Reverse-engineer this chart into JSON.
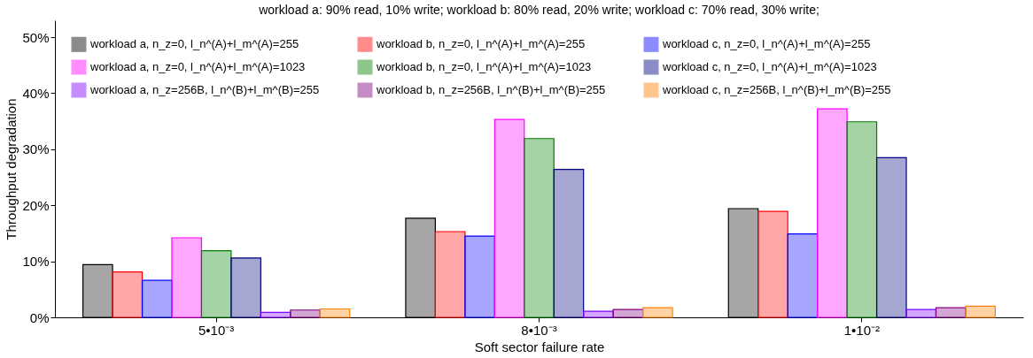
{
  "chart_data": {
    "type": "bar",
    "annotations": [
      "workload a: 90% read, 10% write;      workload b: 80% read, 20% write;      workload c: 70% read, 30% write;"
    ],
    "xlabel": "Soft sector failure rate",
    "ylabel": "Throughput degradation",
    "categories": [
      "5•10⁻³",
      "8•10⁻³",
      "1•10⁻²"
    ],
    "series": [
      {
        "name": "workload a, n_z=0, l_n^(A)+l_m^(A)=255",
        "color": "#000000",
        "values": [
          9.4,
          17.7,
          19.4
        ]
      },
      {
        "name": "workload b, n_z=0, l_n^(A)+l_m^(A)=255",
        "color": "#ff0000",
        "values": [
          8.1,
          15.3,
          18.9
        ]
      },
      {
        "name": "workload c, n_z=0, l_n^(A)+l_m^(A)=255",
        "color": "#0000ff",
        "values": [
          6.6,
          14.5,
          14.9
        ]
      },
      {
        "name": "workload a, n_z=0, l_n^(A)+l_m^(A)=1023",
        "color": "#ff00ff",
        "values": [
          14.2,
          35.3,
          37.2
        ]
      },
      {
        "name": "workload b, n_z=0, l_n^(A)+l_m^(A)=1023",
        "color": "#008000",
        "values": [
          11.9,
          31.9,
          34.9
        ]
      },
      {
        "name": "workload c, n_z=0, l_n^(A)+l_m^(A)=1023",
        "color": "#000080",
        "values": [
          10.6,
          26.4,
          28.5
        ]
      },
      {
        "name": "workload a, n_z=256B, l_n^(B)+l_m^(B)=255",
        "color": "#8000ff",
        "values": [
          0.9,
          1.1,
          1.4
        ]
      },
      {
        "name": "workload b, n_z=256B, l_n^(B)+l_m^(B)=255",
        "color": "#800080",
        "values": [
          1.3,
          1.4,
          1.7
        ]
      },
      {
        "name": "workload c, n_z=256B, l_n^(B)+l_m^(B)=255",
        "color": "#ff8000",
        "values": [
          1.5,
          1.7,
          2.0
        ]
      }
    ],
    "ylim": [
      0,
      53
    ],
    "yticks": [
      {
        "value": 0,
        "label": "0%"
      },
      {
        "value": 10,
        "label": "10%"
      },
      {
        "value": 20,
        "label": "20%"
      },
      {
        "value": 30,
        "label": "30%"
      },
      {
        "value": 40,
        "label": "40%"
      },
      {
        "value": 50,
        "label": "50%"
      }
    ],
    "grid": false,
    "legend": "top left"
  }
}
